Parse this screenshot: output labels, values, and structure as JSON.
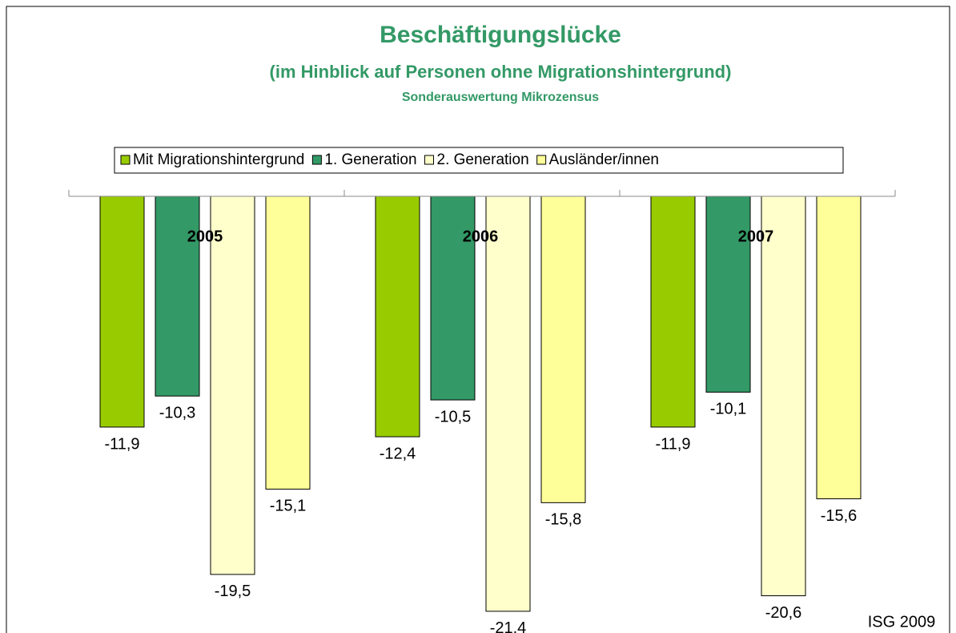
{
  "chart_data": {
    "type": "bar",
    "title": "Beschäftigungslücke",
    "subtitle": "(im Hinblick auf Personen ohne Migrationshintergrund)",
    "subtitle2": "Sonderauswertung Mikrozensus",
    "source": "ISG 2009",
    "categories": [
      "2005",
      "2006",
      "2007"
    ],
    "series": [
      {
        "name": "Mit Migrationshintergrund",
        "color": "#99cc00",
        "values": [
          -11.9,
          -12.4,
          -11.9
        ],
        "value_labels": [
          "-11,9",
          "-12,4",
          "-11,9"
        ]
      },
      {
        "name": "1. Generation",
        "color": "#339966",
        "values": [
          -10.3,
          -10.5,
          -10.1
        ],
        "value_labels": [
          "-10,3",
          "-10,5",
          "-10,1"
        ]
      },
      {
        "name": "2. Generation",
        "color": "#ffffcc",
        "values": [
          -19.5,
          -21.4,
          -20.6
        ],
        "value_labels": [
          "-19,5",
          "-21,4",
          "-20,6"
        ]
      },
      {
        "name": "Ausländer/innen",
        "color": "#ffff99",
        "values": [
          -15.1,
          -15.8,
          -15.6
        ],
        "value_labels": [
          "-15,1",
          "-15,8",
          "-15,6"
        ]
      }
    ]
  }
}
